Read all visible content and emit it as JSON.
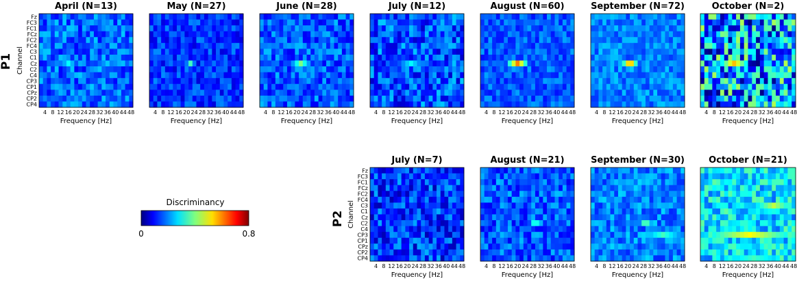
{
  "row_labels": [
    "P1",
    "P2"
  ],
  "channels": [
    "Fz",
    "FC3",
    "FC1",
    "FCz",
    "FC2",
    "FC4",
    "C3",
    "C1",
    "Cz",
    "C2",
    "C4",
    "CP3",
    "CP1",
    "CPz",
    "CP2",
    "CP4"
  ],
  "frequency_ticks": [
    "4",
    "8",
    "12",
    "16",
    "20",
    "24",
    "28",
    "32",
    "36",
    "40",
    "44",
    "48"
  ],
  "xlabel": "Frequency [Hz]",
  "ylabel": "Channel",
  "colorbar": {
    "label": "Discriminancy",
    "min_label": "0",
    "max_label": "0.8",
    "colormap": "jet",
    "vmin": 0,
    "vmax": 0.8
  },
  "chart_data": [
    {
      "type": "heatmap",
      "subject": "P1",
      "title": "April (N=13)",
      "hotspots": [
        {
          "channel": "Cz",
          "freq_range": [
            12,
            20
          ],
          "value": 0.3
        }
      ]
    },
    {
      "type": "heatmap",
      "subject": "P1",
      "title": "May (N=27)",
      "hotspots": [
        {
          "channel": "Cz",
          "freq_range": [
            20,
            24
          ],
          "value": 0.35
        }
      ]
    },
    {
      "type": "heatmap",
      "subject": "P1",
      "title": "June (N=28)",
      "hotspots": [
        {
          "channel": "Cz",
          "freq_range": [
            18,
            26
          ],
          "value": 0.4
        }
      ]
    },
    {
      "type": "heatmap",
      "subject": "P1",
      "title": "July (N=12)",
      "hotspots": [
        {
          "channel": "Cz",
          "freq_range": [
            16,
            28
          ],
          "value": 0.3
        }
      ]
    },
    {
      "type": "heatmap",
      "subject": "P1",
      "title": "August (N=60)",
      "hotspots": [
        {
          "channel": "Cz",
          "freq_range": [
            16,
            24
          ],
          "value": 0.6
        }
      ]
    },
    {
      "type": "heatmap",
      "subject": "P1",
      "title": "September (N=72)",
      "hotspots": [
        {
          "channel": "Cz",
          "freq_range": [
            18,
            24
          ],
          "value": 0.62
        }
      ]
    },
    {
      "type": "heatmap",
      "subject": "P1",
      "title": "October (N=2)",
      "hotspots": [
        {
          "channel": "Cz",
          "freq_range": [
            12,
            24
          ],
          "value": 0.55
        }
      ]
    },
    {
      "type": "heatmap",
      "subject": "P2",
      "title": "July (N=7)",
      "hotspots": []
    },
    {
      "type": "heatmap",
      "subject": "P2",
      "title": "August (N=21)",
      "hotspots": [
        {
          "channel": "C2",
          "freq_range": [
            28,
            30
          ],
          "value": 0.4
        }
      ]
    },
    {
      "type": "heatmap",
      "subject": "P2",
      "title": "September (N=30)",
      "hotspots": [
        {
          "channel": "C2",
          "freq_range": [
            28,
            30
          ],
          "value": 0.45
        },
        {
          "channel": "CP3",
          "freq_range": [
            28,
            48
          ],
          "value": 0.35
        }
      ]
    },
    {
      "type": "heatmap",
      "subject": "P2",
      "title": "October (N=21)",
      "hotspots": [
        {
          "channel": "C3",
          "freq_range": [
            28,
            48
          ],
          "value": 0.45
        },
        {
          "channel": "CP3",
          "freq_range": [
            4,
            48
          ],
          "value": 0.5
        },
        {
          "channel": "CP4",
          "freq_range": [
            8,
            48
          ],
          "value": 0.35
        }
      ]
    }
  ]
}
